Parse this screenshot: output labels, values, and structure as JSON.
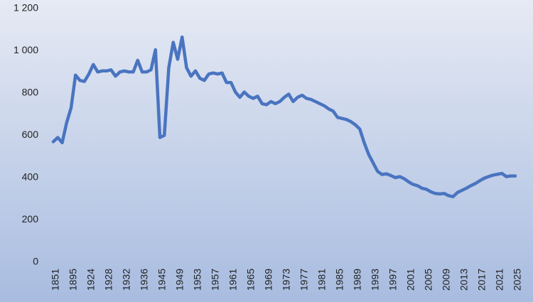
{
  "chart_data": {
    "type": "line",
    "categories": [
      "1851",
      null,
      null,
      null,
      "1895",
      null,
      null,
      null,
      "1924",
      null,
      null,
      null,
      "1928",
      null,
      null,
      null,
      "1932",
      null,
      null,
      null,
      "1936",
      null,
      null,
      null,
      "1945",
      null,
      null,
      null,
      "1949",
      null,
      null,
      null,
      "1953",
      null,
      null,
      null,
      "1957",
      null,
      null,
      null,
      "1961",
      null,
      null,
      null,
      "1965",
      null,
      null,
      null,
      "1969",
      null,
      null,
      null,
      "1973",
      null,
      null,
      null,
      "1977",
      null,
      null,
      null,
      "1981",
      null,
      null,
      null,
      "1985",
      null,
      null,
      null,
      "1989",
      null,
      null,
      null,
      "1993",
      null,
      null,
      null,
      "1997",
      null,
      null,
      null,
      "2001",
      null,
      null,
      null,
      "2005",
      null,
      null,
      null,
      "2009",
      null,
      null,
      null,
      "2013",
      null,
      null,
      null,
      "2017",
      null,
      null,
      null,
      "2021",
      null,
      null,
      null,
      "2025"
    ],
    "series": [
      {
        "color": "#4a74c0",
        "values": [
          570,
          590,
          565,
          660,
          730,
          885,
          860,
          855,
          890,
          935,
          900,
          905,
          905,
          910,
          880,
          900,
          905,
          900,
          900,
          955,
          900,
          900,
          910,
          1005,
          590,
          600,
          920,
          1040,
          960,
          1065,
          920,
          880,
          905,
          870,
          860,
          890,
          895,
          890,
          895,
          850,
          850,
          805,
          780,
          805,
          785,
          775,
          785,
          750,
          745,
          760,
          750,
          760,
          780,
          795,
          760,
          780,
          790,
          775,
          770,
          760,
          750,
          740,
          725,
          715,
          685,
          680,
          675,
          665,
          650,
          630,
          565,
          510,
          470,
          430,
          415,
          418,
          410,
          400,
          405,
          395,
          380,
          368,
          362,
          350,
          345,
          333,
          325,
          323,
          325,
          315,
          310,
          330,
          340,
          350,
          362,
          372,
          385,
          397,
          405,
          412,
          416,
          420,
          405,
          408,
          408
        ]
      }
    ],
    "ylim": [
      0,
      1200
    ],
    "yticks": [
      0,
      200,
      400,
      600,
      800,
      {
        "value": 1000,
        "label": "1 000"
      },
      {
        "value": 1200,
        "label": "1 200"
      }
    ],
    "grid": false
  }
}
